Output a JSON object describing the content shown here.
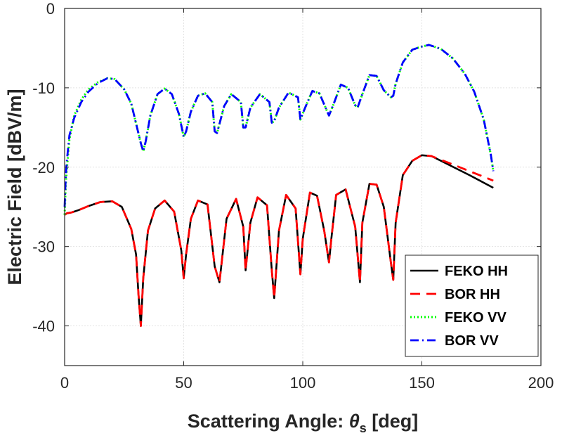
{
  "chart_data": {
    "type": "line",
    "title": "",
    "xlabel": "Scattering Angle: θs [deg]",
    "xlabel_main": "Scattering Angle: ",
    "xlabel_symbol": "θ",
    "xlabel_subscript": "s",
    "xlabel_units": " [deg]",
    "ylabel": "Electric Field [dBV/m]",
    "xlim": [
      0,
      200
    ],
    "ylim": [
      -45,
      0
    ],
    "xticks": [
      0,
      50,
      100,
      150,
      200
    ],
    "yticks": [
      0,
      -10,
      -20,
      -30,
      -40
    ],
    "xtick_labels": [
      "0",
      "50",
      "100",
      "150",
      "200"
    ],
    "ytick_labels": [
      "0",
      "-10",
      "-20",
      "-30",
      "-40"
    ],
    "grid": true,
    "legend_position": "bottom-right",
    "series": [
      {
        "name": "FEKO HH",
        "color": "#000000",
        "style": "solid",
        "x": [
          0,
          1,
          3,
          6,
          10,
          15,
          20,
          24,
          28,
          30,
          31,
          32,
          33,
          35,
          38,
          42,
          46,
          49,
          50,
          51,
          53,
          56,
          60,
          63,
          65,
          68,
          72,
          75,
          76,
          78,
          81,
          85,
          87,
          88,
          90,
          93,
          97,
          99,
          100,
          103,
          106,
          109,
          111,
          112,
          114,
          118,
          122,
          124,
          125,
          128,
          131,
          134,
          137,
          138,
          139,
          142,
          146,
          150,
          154,
          160,
          170,
          180
        ],
        "y": [
          -26,
          -25.8,
          -25.7,
          -25.4,
          -24.9,
          -24.4,
          -24.3,
          -25,
          -27.8,
          -31,
          -36,
          -40,
          -34,
          -28,
          -25.2,
          -24.2,
          -25.6,
          -30.5,
          -34,
          -31,
          -26.5,
          -24.2,
          -24.7,
          -32.5,
          -34.5,
          -26.5,
          -24,
          -27.5,
          -33,
          -27,
          -23.8,
          -24.8,
          -33,
          -36.5,
          -28,
          -23.5,
          -25.2,
          -33.5,
          -29,
          -23.2,
          -23.6,
          -28,
          -32,
          -29,
          -23.5,
          -22.8,
          -27.5,
          -34.5,
          -27,
          -22.1,
          -22.2,
          -25,
          -32,
          -34.2,
          -27,
          -21,
          -19.2,
          -18.5,
          -18.6,
          -19.5,
          -21,
          -22.6
        ]
      },
      {
        "name": "BOR HH",
        "color": "#ff0000",
        "style": "dashed",
        "x": [
          0,
          1,
          3,
          6,
          10,
          15,
          20,
          24,
          28,
          30,
          31,
          32,
          33,
          35,
          38,
          42,
          46,
          49,
          50,
          51,
          53,
          56,
          60,
          63,
          65,
          68,
          72,
          75,
          76,
          78,
          81,
          85,
          87,
          88,
          90,
          93,
          97,
          99,
          100,
          103,
          106,
          109,
          111,
          112,
          114,
          118,
          122,
          124,
          125,
          128,
          131,
          134,
          137,
          138,
          139,
          142,
          146,
          150,
          154,
          160,
          170,
          180
        ],
        "y": [
          -26,
          -25.8,
          -25.7,
          -25.4,
          -24.9,
          -24.4,
          -24.3,
          -25,
          -27.8,
          -31,
          -36,
          -40,
          -34,
          -28,
          -25.2,
          -24.2,
          -25.6,
          -30.5,
          -34,
          -31,
          -26.5,
          -24.2,
          -24.7,
          -32.5,
          -34.5,
          -26.5,
          -24,
          -27.5,
          -33,
          -27,
          -23.8,
          -24.8,
          -33,
          -36.5,
          -28,
          -23.5,
          -25.2,
          -33.5,
          -29,
          -23.2,
          -23.6,
          -28,
          -32,
          -29,
          -23.5,
          -22.8,
          -27.5,
          -34.5,
          -27,
          -22.1,
          -22.2,
          -25,
          -32,
          -34.2,
          -27,
          -21,
          -19.2,
          -18.5,
          -18.6,
          -19.3,
          -20.5,
          -21.7
        ]
      },
      {
        "name": "FEKO VV",
        "color": "#00ff00",
        "style": "dotted",
        "x": [
          0,
          0.5,
          1,
          2,
          4,
          7,
          10,
          14,
          18,
          21,
          25,
          28,
          30,
          32,
          33,
          34,
          36,
          39,
          42,
          45,
          48,
          50,
          51,
          53,
          56,
          59,
          62,
          63,
          64,
          67,
          70,
          74,
          75,
          76,
          78,
          82,
          86,
          87,
          88,
          90,
          94,
          98,
          99,
          101,
          104,
          107,
          110,
          111,
          113,
          116,
          119,
          122,
          123,
          125,
          128,
          131,
          134,
          137,
          138,
          139,
          142,
          146,
          150,
          153,
          158,
          163,
          168,
          172,
          176,
          179,
          180
        ],
        "y": [
          -26,
          -22,
          -20,
          -16.5,
          -13.5,
          -11.5,
          -10.2,
          -9.3,
          -8.8,
          -8.9,
          -10.2,
          -12,
          -14.5,
          -17,
          -18,
          -16.8,
          -13.5,
          -10.8,
          -10.1,
          -10.8,
          -13.3,
          -16.2,
          -15.5,
          -13,
          -11,
          -10.7,
          -11.8,
          -15.5,
          -15.7,
          -12.3,
          -10.8,
          -11.8,
          -15,
          -15,
          -12.5,
          -10.8,
          -11.8,
          -14.4,
          -14.2,
          -12.5,
          -10.6,
          -11.2,
          -14,
          -12.5,
          -10.4,
          -10.7,
          -12.8,
          -13.5,
          -12,
          -9.6,
          -10,
          -12.2,
          -12.5,
          -10.8,
          -8.4,
          -8.5,
          -10.3,
          -11.2,
          -11,
          -9.5,
          -6.8,
          -5.2,
          -4.8,
          -4.6,
          -5.1,
          -6.3,
          -8.2,
          -10.5,
          -14,
          -18.5,
          -20.5
        ]
      },
      {
        "name": "BOR VV",
        "color": "#0000ff",
        "style": "dashdot",
        "x": [
          0,
          0.5,
          1,
          2,
          4,
          7,
          10,
          14,
          18,
          21,
          25,
          28,
          30,
          32,
          33,
          34,
          36,
          39,
          42,
          45,
          48,
          50,
          51,
          53,
          56,
          59,
          62,
          63,
          64,
          67,
          70,
          74,
          75,
          76,
          78,
          82,
          86,
          87,
          88,
          90,
          94,
          98,
          99,
          101,
          104,
          107,
          110,
          111,
          113,
          116,
          119,
          122,
          123,
          125,
          128,
          131,
          134,
          137,
          138,
          139,
          142,
          146,
          150,
          153,
          158,
          163,
          168,
          172,
          176,
          179,
          180
        ],
        "y": [
          -25,
          -21,
          -19,
          -16,
          -13.8,
          -11.8,
          -10.5,
          -9.4,
          -8.8,
          -8.9,
          -10.2,
          -12,
          -14.5,
          -17,
          -18,
          -16.8,
          -13.5,
          -10.8,
          -10.1,
          -10.8,
          -13.3,
          -16.2,
          -15.5,
          -13,
          -11,
          -10.7,
          -11.8,
          -15.5,
          -15.7,
          -12.3,
          -10.8,
          -11.8,
          -15,
          -15,
          -12.5,
          -10.8,
          -11.8,
          -14.4,
          -14.2,
          -12.5,
          -10.6,
          -11.2,
          -14,
          -12.5,
          -10.4,
          -10.7,
          -12.8,
          -13.5,
          -12,
          -9.6,
          -10,
          -12.2,
          -12.5,
          -10.8,
          -8.4,
          -8.5,
          -10.3,
          -11.2,
          -11,
          -9.5,
          -6.8,
          -5.2,
          -4.8,
          -4.6,
          -5.1,
          -6.3,
          -8.2,
          -10.5,
          -14,
          -18.5,
          -20.5
        ]
      }
    ]
  }
}
